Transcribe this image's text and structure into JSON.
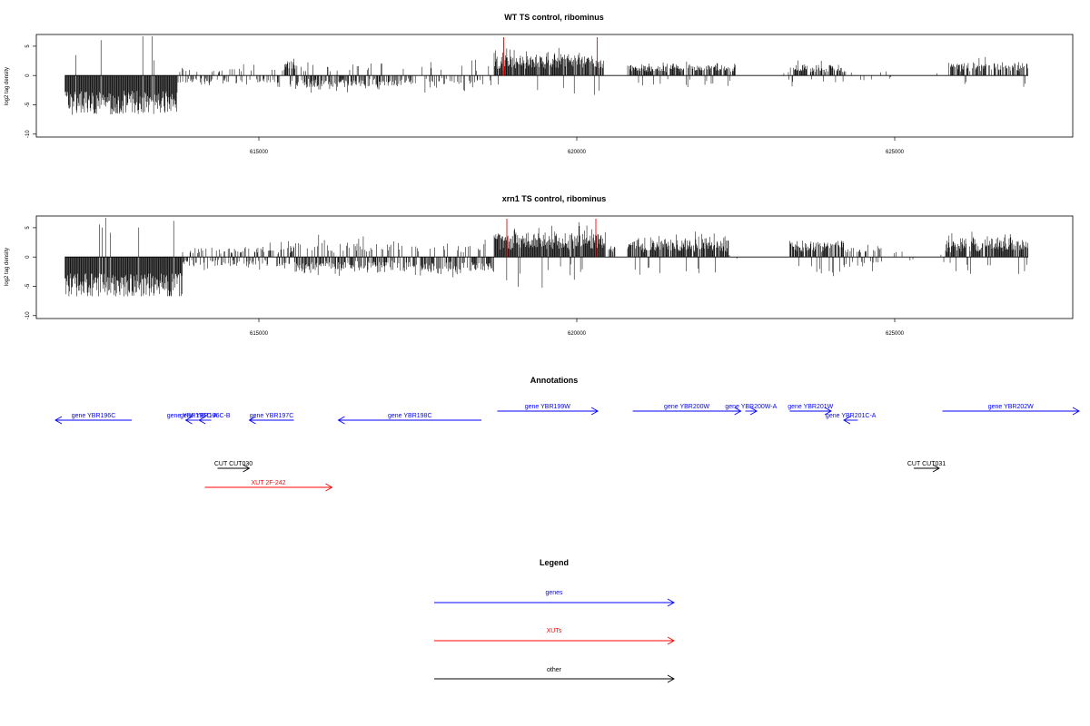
{
  "chart_data": [
    {
      "type": "bar",
      "title": "WT TS control, ribominus",
      "ylabel": "log2 tag density",
      "xlim": [
        611500,
        627800
      ],
      "ylim": [
        -10.5,
        7
      ],
      "xticks": [
        615000,
        620000,
        625000
      ],
      "xtick_labels": [
        "615000",
        "620000",
        "625000"
      ],
      "yticks": [
        -10,
        -5,
        0,
        5
      ],
      "ytick_labels": [
        "-10",
        "-5",
        "0",
        "5"
      ],
      "markers": [
        {
          "x": 618850,
          "color": "#ff0000"
        },
        {
          "x": 620320,
          "color": "#ff0000"
        }
      ],
      "regions": [
        {
          "start": 611950,
          "end": 613720,
          "sign": -1,
          "amp": 5.2,
          "jitter": 3.0,
          "density": 1.0,
          "p": 0.97
        },
        {
          "start": 613720,
          "end": 614300,
          "sign": -1,
          "amp": 0.9,
          "jitter": 0.6,
          "density": 0.5,
          "p": 0.55
        },
        {
          "start": 614300,
          "end": 615400,
          "sign": -1,
          "amp": 0.9,
          "jitter": 0.8,
          "density": 0.35,
          "p": 0.6
        },
        {
          "start": 615400,
          "end": 615600,
          "sign": 1,
          "amp": 1.8,
          "jitter": 0.6,
          "density": 0.9,
          "p": 0.8
        },
        {
          "start": 615600,
          "end": 617100,
          "sign": -1,
          "amp": 1.4,
          "jitter": 1.0,
          "density": 0.75,
          "p": 0.8
        },
        {
          "start": 617100,
          "end": 618700,
          "sign": -1,
          "amp": 1.2,
          "jitter": 1.0,
          "density": 0.45,
          "p": 0.85
        },
        {
          "start": 618700,
          "end": 620420,
          "sign": 1,
          "amp": 2.4,
          "jitter": 1.5,
          "density": 0.95,
          "p": 0.95
        },
        {
          "start": 620800,
          "end": 622500,
          "sign": 1,
          "amp": 1.3,
          "jitter": 0.7,
          "density": 0.8,
          "p": 0.92
        },
        {
          "start": 622500,
          "end": 623350,
          "sign": 1,
          "amp": 0.5,
          "jitter": 0.3,
          "density": 0.05,
          "p": 0.5
        },
        {
          "start": 623350,
          "end": 624200,
          "sign": 1,
          "amp": 1.4,
          "jitter": 0.6,
          "density": 0.65,
          "p": 0.9
        },
        {
          "start": 624200,
          "end": 624800,
          "sign": -1,
          "amp": 0.7,
          "jitter": 0.3,
          "density": 0.15,
          "p": 0.5
        },
        {
          "start": 624800,
          "end": 625850,
          "sign": 1,
          "amp": 0.5,
          "jitter": 0.3,
          "density": 0.03,
          "p": 0.5
        },
        {
          "start": 625850,
          "end": 627100,
          "sign": 1,
          "amp": 1.6,
          "jitter": 0.9,
          "density": 0.75,
          "p": 0.93
        }
      ]
    },
    {
      "type": "bar",
      "title": "xrn1 TS control, ribominus",
      "ylabel": "log2 tag density",
      "xlim": [
        611500,
        627800
      ],
      "ylim": [
        -10.5,
        7
      ],
      "xticks": [
        615000,
        620000,
        625000
      ],
      "xtick_labels": [
        "615000",
        "620000",
        "625000"
      ],
      "yticks": [
        -10,
        -5,
        0,
        5
      ],
      "ytick_labels": [
        "-10",
        "-5",
        "0",
        "5"
      ],
      "markers": [
        {
          "x": 618900,
          "color": "#ff0000"
        },
        {
          "x": 620300,
          "color": "#ff0000"
        }
      ],
      "regions": [
        {
          "start": 611950,
          "end": 613800,
          "sign": -1,
          "amp": 5.5,
          "jitter": 3.0,
          "density": 1.0,
          "p": 0.97
        },
        {
          "start": 613800,
          "end": 614400,
          "sign": -1,
          "amp": 1.1,
          "jitter": 0.8,
          "density": 0.6,
          "p": 0.6
        },
        {
          "start": 614400,
          "end": 615400,
          "sign": 1,
          "amp": 1.1,
          "jitter": 0.8,
          "density": 0.7,
          "p": 0.55
        },
        {
          "start": 615400,
          "end": 617100,
          "sign": -1,
          "amp": 1.6,
          "jitter": 1.2,
          "density": 0.9,
          "p": 0.7
        },
        {
          "start": 617100,
          "end": 618700,
          "sign": -1,
          "amp": 1.7,
          "jitter": 1.3,
          "density": 0.8,
          "p": 0.85
        },
        {
          "start": 618700,
          "end": 620450,
          "sign": 1,
          "amp": 3.0,
          "jitter": 1.6,
          "density": 1.0,
          "p": 0.95
        },
        {
          "start": 620500,
          "end": 620600,
          "sign": 1,
          "amp": 1.5,
          "jitter": 0.5,
          "density": 0.8,
          "p": 0.9
        },
        {
          "start": 620800,
          "end": 622400,
          "sign": 1,
          "amp": 2.2,
          "jitter": 1.3,
          "density": 0.9,
          "p": 0.93
        },
        {
          "start": 622400,
          "end": 623350,
          "sign": 1,
          "amp": 0.4,
          "jitter": 0.3,
          "density": 0.03,
          "p": 0.5
        },
        {
          "start": 623350,
          "end": 624200,
          "sign": 1,
          "amp": 2.0,
          "jitter": 1.1,
          "density": 0.85,
          "p": 0.9
        },
        {
          "start": 624200,
          "end": 624800,
          "sign": -1,
          "amp": 1.2,
          "jitter": 0.8,
          "density": 0.5,
          "p": 0.5
        },
        {
          "start": 624800,
          "end": 625800,
          "sign": 1,
          "amp": 0.7,
          "jitter": 0.4,
          "density": 0.06,
          "p": 0.6
        },
        {
          "start": 625800,
          "end": 627100,
          "sign": 1,
          "amp": 2.3,
          "jitter": 1.1,
          "density": 0.9,
          "p": 0.95
        }
      ]
    }
  ],
  "annotations": {
    "title": "Annotations",
    "genes": [
      {
        "label": "gene YBR196C",
        "start": 613000,
        "end": 611800,
        "row": 2
      },
      {
        "label": "gene YBR196C-A",
        "start": 614050,
        "end": 613850,
        "row": 2
      },
      {
        "label": "gene YBR196C-B",
        "start": 614250,
        "end": 614060,
        "row": 2
      },
      {
        "label": "gene YBR197C",
        "start": 615550,
        "end": 614850,
        "row": 2
      },
      {
        "label": "gene YBR198C",
        "start": 618500,
        "end": 616250,
        "row": 2
      },
      {
        "label": "gene YBR199W",
        "start": 618750,
        "end": 620330,
        "row": 1
      },
      {
        "label": "gene YBR200W",
        "start": 620880,
        "end": 622580,
        "row": 1
      },
      {
        "label": "gene YBR200W-A",
        "start": 622650,
        "end": 622830,
        "row": 1
      },
      {
        "label": "gene YBR201W",
        "start": 623350,
        "end": 624000,
        "row": 1
      },
      {
        "label": "gene YBR201C-A",
        "start": 624420,
        "end": 624200,
        "row": 2
      },
      {
        "label": "gene YBR202W",
        "start": 625750,
        "end": 627900,
        "row": 1
      }
    ],
    "other": [
      {
        "label": "CUT CUT030",
        "start": 614350,
        "end": 614850
      },
      {
        "label": "CUT CUT031",
        "start": 625300,
        "end": 625700
      }
    ],
    "xuts": [
      {
        "label": "XUT 2F-242",
        "start": 614150,
        "end": 616150
      }
    ]
  },
  "legend": {
    "title": "Legend",
    "items": [
      {
        "label": "genes",
        "color": "#0000ff"
      },
      {
        "label": "XUTs",
        "color": "#ff0000"
      },
      {
        "label": "other",
        "color": "#000000"
      }
    ]
  },
  "colors": {
    "genes": "#0000ff",
    "xuts": "#ff0000",
    "other": "#000000",
    "bars": "#000000",
    "markers": "#ff0000"
  }
}
